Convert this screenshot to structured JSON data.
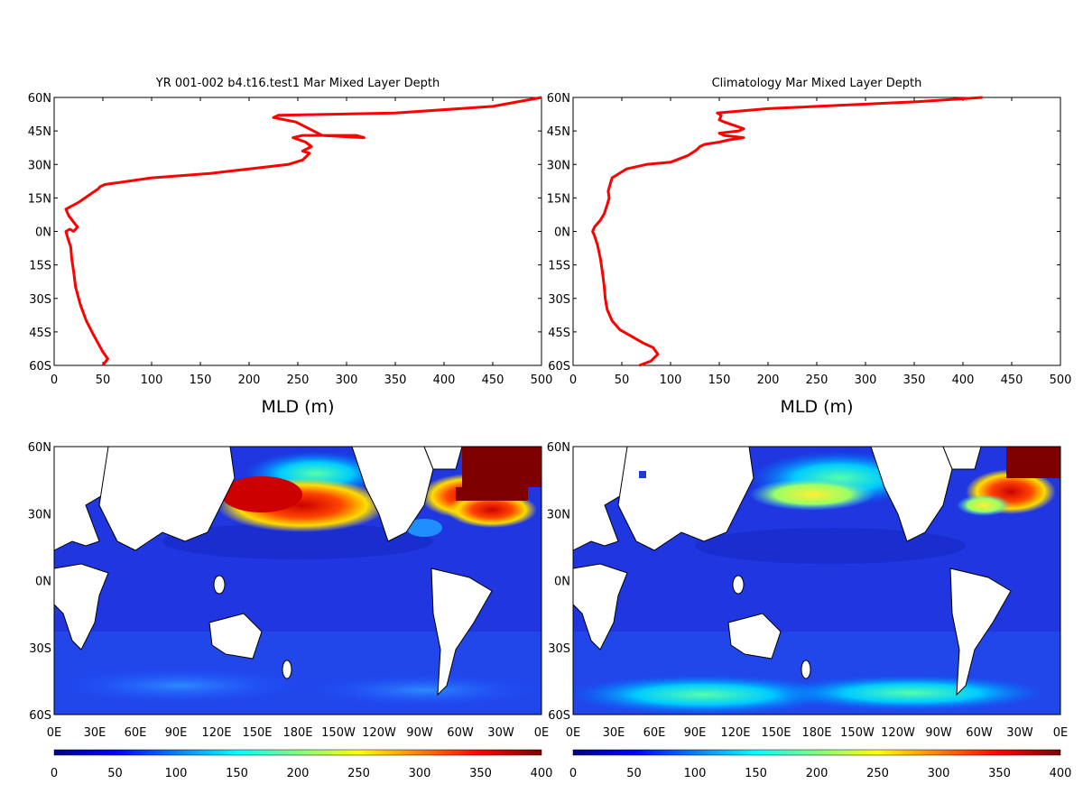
{
  "chart_data": [
    {
      "type": "line",
      "title": "YR 001-002 b4.t16.test1 Mar Mixed Layer Depth",
      "xlabel": "MLD (m)",
      "ylabel": "",
      "xlim": [
        0,
        500
      ],
      "ylim": [
        -60,
        60
      ],
      "xticks": [
        "0",
        "50",
        "100",
        "150",
        "200",
        "250",
        "300",
        "350",
        "400",
        "450",
        "500"
      ],
      "yticks": [
        "60S",
        "45S",
        "30S",
        "15S",
        "0N",
        "15N",
        "30N",
        "45N",
        "60N"
      ],
      "line_color": "#ff0000",
      "series": [
        {
          "x": [
            50,
            55,
            50,
            45,
            40,
            33,
            27,
            22,
            20,
            18,
            17,
            14,
            12,
            16,
            20,
            24,
            22,
            15,
            12,
            25,
            35,
            45,
            47,
            52,
            100,
            160,
            200,
            240,
            255,
            262,
            255,
            264,
            258,
            245,
            255,
            275,
            310,
            318,
            275,
            248,
            225,
            230,
            350,
            450,
            500
          ],
          "y": [
            -60,
            -57,
            -54,
            -50,
            -46,
            -40,
            -33,
            -25,
            -18,
            -12,
            -7,
            -3,
            0,
            1,
            0,
            2,
            3,
            7,
            10,
            13,
            16,
            19,
            20,
            21,
            24,
            26,
            28,
            30,
            32,
            35,
            36,
            38,
            40,
            42,
            43,
            43,
            43,
            42,
            43,
            49,
            51,
            52,
            53,
            56,
            60
          ]
        }
      ]
    },
    {
      "type": "line",
      "title": "Climatology Mar Mixed Layer Depth",
      "xlabel": "MLD (m)",
      "ylabel": "",
      "xlim": [
        0,
        500
      ],
      "ylim": [
        -60,
        60
      ],
      "xticks": [
        "0",
        "50",
        "100",
        "150",
        "200",
        "250",
        "300",
        "350",
        "400",
        "450",
        "500"
      ],
      "yticks": [
        "60S",
        "45S",
        "30S",
        "15S",
        "0N",
        "15N",
        "30N",
        "45N",
        "60N"
      ],
      "line_color": "#ff0000",
      "series": [
        {
          "x": [
            68,
            80,
            87,
            82,
            72,
            60,
            48,
            40,
            35,
            33,
            32,
            30,
            28,
            25,
            22,
            20,
            22,
            28,
            32,
            35,
            37,
            36,
            38,
            40,
            55,
            75,
            100,
            118,
            125,
            128,
            130,
            135,
            150,
            160,
            175,
            155,
            150,
            170,
            175,
            155,
            150,
            152,
            148,
            200,
            350,
            420
          ],
          "y": [
            -60,
            -58,
            -55,
            -52,
            -50,
            -47,
            -44,
            -40,
            -35,
            -30,
            -25,
            -18,
            -12,
            -6,
            -2,
            0,
            2,
            5,
            8,
            12,
            15,
            18,
            21,
            24,
            28,
            30,
            31,
            34,
            36,
            37,
            38,
            39,
            40,
            41,
            42,
            43,
            44,
            45,
            46,
            49,
            50,
            52,
            53,
            55,
            58,
            60
          ]
        }
      ]
    },
    {
      "type": "heatmap",
      "title": "",
      "ylabel": "",
      "xticks": [
        "0E",
        "30E",
        "60E",
        "90E",
        "120E",
        "150E",
        "180E",
        "150W",
        "120W",
        "90W",
        "60W",
        "30W",
        "0E"
      ],
      "yticks": [
        "60S",
        "30S",
        "0N",
        "30N",
        "60N"
      ],
      "colorbar_ticks": [
        "0",
        "50",
        "100",
        "150",
        "200",
        "250",
        "300",
        "350",
        "400"
      ],
      "colorbar_range": [
        0,
        400
      ],
      "land_color": "#ffffff",
      "colormap": [
        "#00008f",
        "#0000ff",
        "#007fff",
        "#00ffff",
        "#7fff7f",
        "#ffff00",
        "#ff7f00",
        "#ff0000",
        "#7f0000"
      ]
    },
    {
      "type": "heatmap",
      "title": "",
      "ylabel": "",
      "xticks": [
        "0E",
        "30E",
        "60E",
        "90E",
        "120E",
        "150E",
        "180E",
        "150W",
        "120W",
        "90W",
        "60W",
        "30W",
        "0E"
      ],
      "yticks": [
        "60S",
        "30S",
        "0N",
        "30N",
        "60N"
      ],
      "colorbar_ticks": [
        "0",
        "50",
        "100",
        "150",
        "200",
        "250",
        "300",
        "350",
        "400"
      ],
      "colorbar_range": [
        0,
        400
      ],
      "land_color": "#ffffff",
      "colormap": [
        "#00008f",
        "#0000ff",
        "#007fff",
        "#00ffff",
        "#7fff7f",
        "#ffff00",
        "#ff7f00",
        "#ff0000",
        "#7f0000"
      ]
    }
  ]
}
